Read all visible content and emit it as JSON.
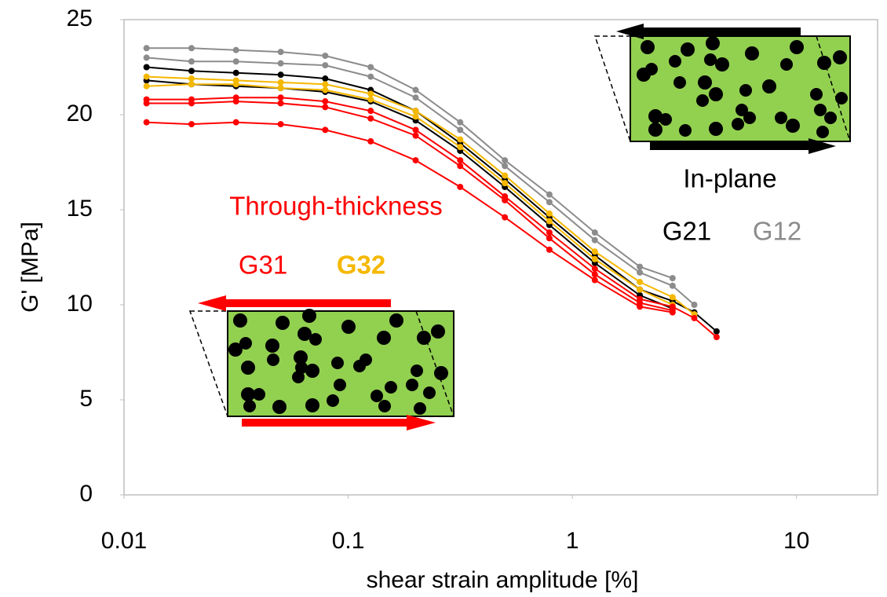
{
  "chart_data": {
    "type": "line",
    "x_label": "shear strain amplitude [%]",
    "y_label": "G' [MPa]",
    "xscale": "log",
    "xlim": [
      0.01,
      23
    ],
    "xticks": [
      0.01,
      0.1,
      1,
      10
    ],
    "ylim": [
      0,
      25
    ],
    "yticks": [
      0,
      5,
      10,
      15,
      20,
      25
    ],
    "grid": false,
    "annotations": [
      "Through-thickness",
      "In-plane"
    ],
    "x": [
      0.0126,
      0.02,
      0.0316,
      0.05,
      0.079,
      0.126,
      0.2,
      0.316,
      0.5,
      0.79,
      1.26,
      2.0,
      2.8,
      3.5,
      4.4
    ],
    "series": [
      {
        "name": "G12",
        "color": "#8c8c8c",
        "values": [
          23.5,
          23.5,
          23.4,
          23.3,
          23.1,
          22.5,
          21.3,
          19.6,
          17.6,
          15.8,
          13.8,
          12.0,
          11.4,
          null,
          null
        ]
      },
      {
        "name": "G12",
        "color": "#8c8c8c",
        "values": [
          23.0,
          22.8,
          22.8,
          22.7,
          22.6,
          22.0,
          20.9,
          19.2,
          17.3,
          15.4,
          13.4,
          11.7,
          11.0,
          10.0,
          null
        ]
      },
      {
        "name": "G21",
        "color": "#000000",
        "values": [
          22.5,
          22.3,
          22.2,
          22.1,
          21.9,
          21.3,
          20.2,
          18.5,
          16.6,
          14.6,
          12.6,
          10.8,
          10.2,
          9.6,
          8.6
        ]
      },
      {
        "name": "G21",
        "color": "#000000",
        "values": [
          21.8,
          21.6,
          21.5,
          21.4,
          21.2,
          20.7,
          19.7,
          18.1,
          16.2,
          14.2,
          12.2,
          10.5,
          9.8,
          null,
          null
        ]
      },
      {
        "name": "G32",
        "color": "#f5b800",
        "values": [
          22.0,
          21.9,
          21.8,
          21.7,
          21.6,
          21.1,
          20.2,
          18.7,
          16.8,
          14.8,
          12.8,
          11.2,
          10.4,
          9.5,
          null
        ]
      },
      {
        "name": "G32",
        "color": "#f5b800",
        "values": [
          21.5,
          21.6,
          21.6,
          21.4,
          21.3,
          20.8,
          19.9,
          18.3,
          16.4,
          14.4,
          12.4,
          10.8,
          10.0,
          null,
          null
        ]
      },
      {
        "name": "G31",
        "color": "#ff0000",
        "values": [
          20.8,
          20.8,
          20.9,
          20.9,
          20.7,
          20.2,
          19.2,
          17.6,
          15.7,
          13.8,
          11.9,
          10.3,
          9.9,
          9.3,
          8.3
        ]
      },
      {
        "name": "G31",
        "color": "#ff0000",
        "values": [
          20.6,
          20.6,
          20.7,
          20.6,
          20.4,
          19.8,
          18.9,
          17.3,
          15.5,
          13.5,
          11.6,
          10.1,
          9.7,
          null,
          null
        ]
      },
      {
        "name": "G31",
        "color": "#ff0000",
        "values": [
          19.6,
          19.5,
          19.6,
          19.5,
          19.2,
          18.6,
          17.6,
          16.2,
          14.6,
          12.9,
          11.3,
          9.9,
          9.6,
          null,
          null
        ]
      }
    ]
  }
}
